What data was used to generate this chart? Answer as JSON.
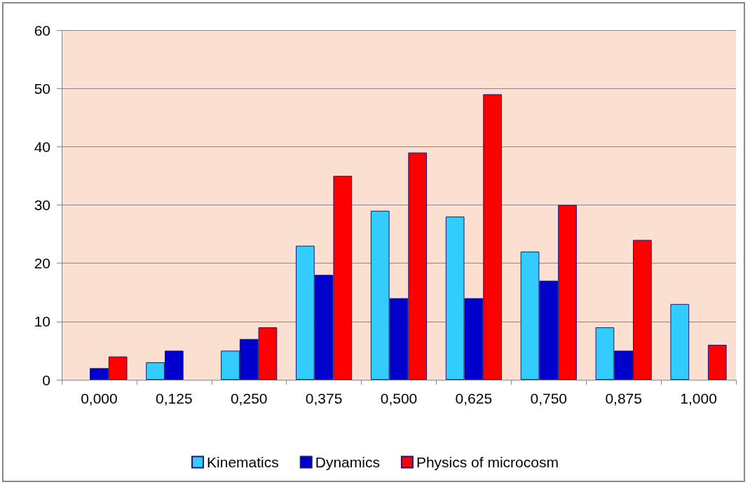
{
  "chart_data": {
    "type": "bar",
    "categories": [
      "0,000",
      "0,125",
      "0,250",
      "0,375",
      "0,500",
      "0,625",
      "0,750",
      "0,875",
      "1,000"
    ],
    "series": [
      {
        "name": "Kinematics",
        "color": "#33ccff",
        "values": [
          null,
          3,
          5,
          23,
          29,
          28,
          22,
          9,
          13
        ]
      },
      {
        "name": "Dynamics",
        "color": "#0000cc",
        "values": [
          2,
          5,
          7,
          18,
          14,
          14,
          17,
          5,
          null
        ]
      },
      {
        "name": "Physics of microcosm",
        "color": "#ff0000",
        "values": [
          4,
          null,
          9,
          35,
          39,
          49,
          30,
          24,
          6
        ]
      }
    ],
    "ylim": [
      0,
      60
    ],
    "yticks": [
      0,
      10,
      20,
      30,
      40,
      50,
      60
    ],
    "grid": "y",
    "legend": "bottom"
  }
}
